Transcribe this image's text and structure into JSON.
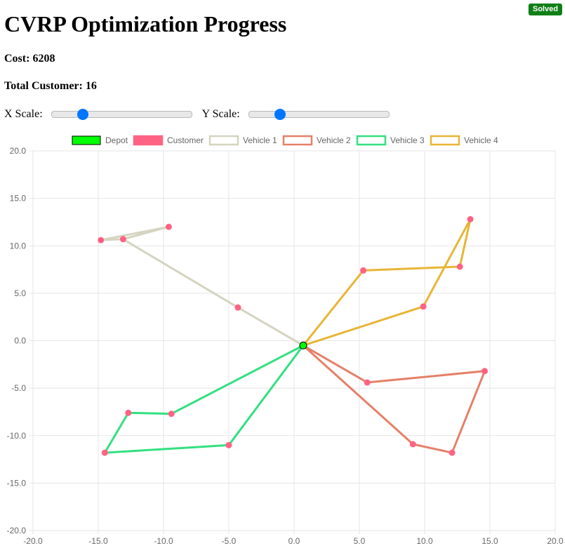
{
  "status": "Solved",
  "title": "CVRP Optimization Progress",
  "cost_text": "Cost: 6208",
  "customers_text": "Total Customer: 16",
  "controls": {
    "x_scale_label": "X Scale:",
    "x_scale_value": 20,
    "y_scale_label": "Y Scale:",
    "y_scale_value": 20,
    "scale_min": 0,
    "scale_max": 100
  },
  "colors": {
    "depot_fill": "#00ff00",
    "customer": "#ff6384",
    "vehicle1": "#d4d4c0",
    "vehicle2": "#e58068",
    "vehicle3": "#33e080",
    "vehicle4": "#e8b535",
    "grid": "#e5e5e5",
    "badge": "#0f7f17",
    "slider_accent": "#0075ff"
  },
  "chart_data": {
    "type": "scatter",
    "xlim": [
      -20,
      20
    ],
    "ylim": [
      -20,
      20
    ],
    "x_ticks": [
      "-20.0",
      "-15.0",
      "-10.0",
      "-5.0",
      "0.0",
      "5.0",
      "10.0",
      "15.0",
      "20.0"
    ],
    "y_ticks": [
      "20.0",
      "15.0",
      "10.0",
      "5.0",
      "0.0",
      "-5.0",
      "-10.0",
      "-15.0",
      "-20.0"
    ],
    "grid": true,
    "legend_position": "top",
    "legend": [
      "Depot",
      "Customer",
      "Vehicle 1",
      "Vehicle 2",
      "Vehicle 3",
      "Vehicle 4"
    ],
    "depot": {
      "name": "Depot",
      "x": 0.7,
      "y": -0.5
    },
    "customers": [
      {
        "x": -4.3,
        "y": 3.5
      },
      {
        "x": -9.6,
        "y": 12.0
      },
      {
        "x": -13.1,
        "y": 10.7
      },
      {
        "x": -14.8,
        "y": 10.6
      },
      {
        "x": 5.6,
        "y": -4.4
      },
      {
        "x": 14.6,
        "y": -3.2
      },
      {
        "x": 12.1,
        "y": -11.8
      },
      {
        "x": 9.1,
        "y": -10.9
      },
      {
        "x": -5.0,
        "y": -11.0
      },
      {
        "x": -14.5,
        "y": -11.8
      },
      {
        "x": -12.7,
        "y": -7.6
      },
      {
        "x": -9.4,
        "y": -7.7
      },
      {
        "x": 9.9,
        "y": 3.6
      },
      {
        "x": 13.5,
        "y": 12.8
      },
      {
        "x": 12.7,
        "y": 7.8
      },
      {
        "x": 5.3,
        "y": 7.4
      }
    ],
    "series": [
      {
        "name": "Vehicle 1",
        "points": [
          [
            0.7,
            -0.5
          ],
          [
            -4.3,
            3.5
          ],
          [
            -13.1,
            10.7
          ],
          [
            -14.8,
            10.6
          ],
          [
            -9.6,
            12.0
          ],
          [
            -13.1,
            10.7
          ],
          [
            -4.3,
            3.5
          ],
          [
            0.7,
            -0.5
          ]
        ]
      },
      {
        "name": "Vehicle 2",
        "points": [
          [
            0.7,
            -0.5
          ],
          [
            5.6,
            -4.4
          ],
          [
            14.6,
            -3.2
          ],
          [
            12.1,
            -11.8
          ],
          [
            9.1,
            -10.9
          ],
          [
            0.7,
            -0.5
          ]
        ]
      },
      {
        "name": "Vehicle 3",
        "points": [
          [
            0.7,
            -0.5
          ],
          [
            -5.0,
            -11.0
          ],
          [
            -14.5,
            -11.8
          ],
          [
            -12.7,
            -7.6
          ],
          [
            -9.4,
            -7.7
          ],
          [
            0.7,
            -0.5
          ]
        ]
      },
      {
        "name": "Vehicle 4",
        "points": [
          [
            0.7,
            -0.5
          ],
          [
            9.9,
            3.6
          ],
          [
            13.5,
            12.8
          ],
          [
            12.7,
            7.8
          ],
          [
            5.3,
            7.4
          ],
          [
            0.7,
            -0.5
          ]
        ]
      }
    ]
  }
}
